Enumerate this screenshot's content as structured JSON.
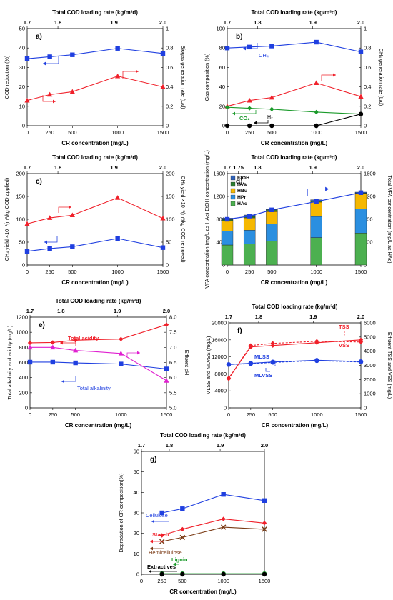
{
  "colors": {
    "blue": "#1f3fe0",
    "red": "#f0202a",
    "green": "#1a9a2a",
    "black": "#000000",
    "brown": "#7a3a14",
    "magenta": "#e020d0",
    "EtOH": "#2f62b8",
    "HVa": "#2e7d32",
    "HBu": "#f5b800",
    "HPr": "#2b8fe0",
    "HAc": "#4cb050"
  },
  "chart_data": [
    {
      "id": "a",
      "type": "line",
      "panel_label": "a)",
      "x2label": "Total COD loading rate (kg/m³d)",
      "x2_ticks": [
        "1.7",
        "1.8",
        "1.9",
        "2.0"
      ],
      "xlabel": "CR concentration (mg/L)",
      "x_ticks": [
        "0",
        "250",
        "500",
        "1000",
        "1500"
      ],
      "ylabel": "COD reduction (%)",
      "ylim": [
        0,
        50
      ],
      "y_ticks": [
        "0",
        "10",
        "20",
        "30",
        "40",
        "50"
      ],
      "y2label": "Biogas generation rate (L/d)",
      "y2lim": [
        0,
        1
      ],
      "y2_ticks": [
        "0",
        "0.2",
        "0.4",
        "0.6",
        "0.8",
        "1"
      ],
      "series": [
        {
          "axis": "left",
          "color": "blue",
          "marker": "square",
          "x": [
            0,
            250,
            500,
            1000,
            1500
          ],
          "y": [
            34.5,
            35.5,
            36.5,
            39.8,
            37.2
          ]
        },
        {
          "axis": "right",
          "color": "red",
          "marker": "triangle",
          "x": [
            0,
            250,
            500,
            1000,
            1500
          ],
          "y": [
            0.26,
            0.32,
            0.35,
            0.51,
            0.4
          ]
        }
      ]
    },
    {
      "id": "b",
      "type": "line",
      "panel_label": "b)",
      "x2label": "Total COD loading rate (kg/m³d)",
      "x2_ticks": [
        "1.7",
        "1.8",
        "1.9",
        "2.0"
      ],
      "xlabel": "CR concentration (mg/L)",
      "x_ticks": [
        "0",
        "250",
        "500",
        "1000",
        "1500"
      ],
      "ylabel": "Gas composition (%)",
      "ylim": [
        0,
        100
      ],
      "y_ticks": [
        "0",
        "20",
        "40",
        "60",
        "80",
        "100"
      ],
      "y2label": "CH₄ generation rate (L/d)",
      "y2lim": [
        0,
        1
      ],
      "y2_ticks": [
        "0",
        "0.2",
        "0.4",
        "0.6",
        "0.8",
        "1"
      ],
      "annotations": [
        "CH₄",
        "CO₂",
        "H₂"
      ],
      "series": [
        {
          "axis": "left",
          "color": "blue",
          "marker": "square",
          "x": [
            0,
            250,
            500,
            1000,
            1500
          ],
          "y": [
            80,
            81,
            82,
            86,
            76
          ]
        },
        {
          "axis": "right",
          "color": "red",
          "marker": "triangle",
          "x": [
            0,
            250,
            500,
            1000,
            1500
          ],
          "y": [
            0.2,
            0.26,
            0.29,
            0.44,
            0.3
          ]
        },
        {
          "axis": "left",
          "color": "green",
          "marker": "diamond",
          "x": [
            0,
            250,
            500,
            1000,
            1500
          ],
          "y": [
            19,
            18,
            17,
            14,
            12
          ]
        },
        {
          "axis": "left",
          "color": "black",
          "marker": "circle",
          "x": [
            0,
            250,
            500,
            1000,
            1500
          ],
          "y": [
            0,
            0,
            0,
            0,
            12
          ]
        }
      ]
    },
    {
      "id": "c",
      "type": "line",
      "panel_label": "c)",
      "xlabel": "CR concentration (mg/L)",
      "x_ticks": [
        "0",
        "250",
        "500",
        "1000",
        "1500"
      ],
      "x2label": "Total COD loading rate (kg/m³d)",
      "x2_ticks": [
        "1.7",
        "1.8",
        "1.9",
        "2.0"
      ],
      "ylabel": "CH₄ yield ×10⁻³(m³/kg COD applied)",
      "ylim": [
        0,
        200
      ],
      "y_ticks": [
        "0",
        "50",
        "100",
        "150",
        "200"
      ],
      "y2label": "CH₄ yield ×10⁻³(m³/kg COD removed)",
      "y2lim": [
        0,
        200
      ],
      "y2_ticks": [
        "0",
        "50",
        "100",
        "150",
        "200"
      ],
      "series": [
        {
          "axis": "left",
          "color": "blue",
          "marker": "square",
          "x": [
            0,
            250,
            500,
            1000,
            1500
          ],
          "y": [
            30,
            36,
            40,
            58,
            38
          ]
        },
        {
          "axis": "right",
          "color": "red",
          "marker": "triangle",
          "x": [
            0,
            250,
            500,
            1000,
            1500
          ],
          "y": [
            90,
            103,
            109,
            147,
            102
          ]
        }
      ]
    },
    {
      "id": "d",
      "type": "bar",
      "panel_label": "d)",
      "x2label": "Total COD loading rate (kg/m³d)",
      "x2_ticks": [
        "1.7",
        "1.75",
        "1.8",
        "1.9",
        "2.0"
      ],
      "xlabel": "CR concentration (mg/L)",
      "categories": [
        "0",
        "250",
        "500",
        "1000",
        "1500"
      ],
      "ylabel": "VFA concentration (mg/L as HAc) EtOH concentration (mg/L)",
      "ylim": [
        0,
        1600
      ],
      "y_ticks": [
        "0",
        "400",
        "800",
        "1200",
        "1600"
      ],
      "y2label": "Total VFA concentration (mg/L as HAc)",
      "y2lim": [
        0,
        1600
      ],
      "y2_ticks": [
        "0",
        "400",
        "800",
        "1200",
        "1600"
      ],
      "legend": [
        "EtOH",
        "HVa",
        "HBu",
        "HPr",
        "HAc"
      ],
      "stacks": {
        "HAc": [
          350,
          370,
          420,
          480,
          560
        ],
        "HPr": [
          240,
          240,
          300,
          370,
          420
        ],
        "HBu": [
          185,
          215,
          215,
          250,
          270
        ],
        "HVa": [
          20,
          25,
          30,
          20,
          10
        ],
        "EtOH": [
          25,
          25,
          20,
          20,
          15
        ]
      },
      "total_vfa": [
        800,
        855,
        965,
        1110,
        1265
      ]
    },
    {
      "id": "e",
      "type": "line",
      "panel_label": "e)",
      "x2label": "Total COD loading rate (kg/m³d)",
      "x2_ticks": [
        "1.7",
        "1.8",
        "1.9",
        "2.0"
      ],
      "xlabel": "CR concentration (mg/L)",
      "x_ticks": [
        "0",
        "250",
        "500",
        "1000",
        "1500"
      ],
      "ylabel": "Total alkalinity and acidity (mg/L)",
      "ylim": [
        0,
        1200
      ],
      "y_ticks": [
        "0",
        "200",
        "400",
        "600",
        "800",
        "1000",
        "1200"
      ],
      "y2label": "Effluent pH",
      "y2lim": [
        5,
        8
      ],
      "y2_ticks": [
        "5.0",
        "5.5",
        "6.0",
        "6.5",
        "7.0",
        "7.5",
        "8.0"
      ],
      "annotations": [
        "Total acidity",
        "Total alkalinity"
      ],
      "series": [
        {
          "axis": "left",
          "color": "red",
          "marker": "diamond",
          "x": [
            0,
            250,
            500,
            1000,
            1500
          ],
          "y": [
            860,
            865,
            895,
            910,
            1100
          ]
        },
        {
          "axis": "left",
          "color": "blue",
          "marker": "square",
          "x": [
            0,
            250,
            500,
            1000,
            1500
          ],
          "y": [
            605,
            605,
            595,
            580,
            515
          ]
        },
        {
          "axis": "right",
          "color": "magenta",
          "marker": "triangle",
          "x": [
            0,
            250,
            500,
            1000,
            1500
          ],
          "y": [
            7.0,
            7.0,
            6.9,
            6.8,
            5.9
          ]
        }
      ]
    },
    {
      "id": "f",
      "type": "line",
      "panel_label": "f)",
      "x2label": "Total COD loading rate (kg/m³d)",
      "x2_ticks": [
        "1.7",
        "1.8",
        "1.9",
        "2.0"
      ],
      "xlabel": "CR concentration (mg/L)",
      "x_ticks": [
        "0",
        "250",
        "500",
        "1000",
        "1500"
      ],
      "ylabel": "MLSS and MLVSS (mg/L)",
      "ylim": [
        0,
        20000
      ],
      "y_ticks": [
        "0",
        "4000",
        "8000",
        "12000",
        "16000",
        "20000"
      ],
      "y2label": "Effluent TSS and VSS (mg/L)",
      "y2lim": [
        0,
        6000
      ],
      "y2_ticks": [
        "0",
        "1000",
        "2000",
        "3000",
        "4000",
        "5000",
        "6000"
      ],
      "annotations": [
        "MLSS",
        "MLVSS",
        "TSS",
        "VSS"
      ],
      "series": [
        {
          "axis": "left",
          "color": "blue",
          "marker": "circle",
          "x": [
            0,
            250,
            500,
            1000,
            1500
          ],
          "y": [
            10200,
            10500,
            10800,
            11200,
            10900
          ]
        },
        {
          "axis": "left",
          "color": "blue",
          "marker": "circle",
          "dashed": true,
          "x": [
            0,
            250,
            500,
            1000,
            1500
          ],
          "y": [
            10200,
            10400,
            10700,
            11100,
            10800
          ]
        },
        {
          "axis": "right",
          "color": "red",
          "marker": "diamond",
          "x": [
            0,
            250,
            500,
            1000,
            1500
          ],
          "y": [
            2100,
            4300,
            4400,
            4600,
            4800
          ]
        },
        {
          "axis": "right",
          "color": "red",
          "marker": "diamond",
          "dashed": true,
          "x": [
            0,
            250,
            500,
            1000,
            1500
          ],
          "y": [
            2050,
            4400,
            4550,
            4700,
            4650
          ]
        }
      ]
    },
    {
      "id": "g",
      "type": "line",
      "panel_label": "g)",
      "x2label": "Total COD loading rate (kg/m³d)",
      "x2_ticks": [
        "1.7",
        "1.8",
        "1.9",
        "2.0"
      ],
      "xlabel": "CR concentration (mg/L)",
      "x_ticks": [
        "0",
        "250",
        "500",
        "1000",
        "1500"
      ],
      "ylabel": "Degradation of CR composition(%)",
      "ylim": [
        0,
        60
      ],
      "y_ticks": [
        "0",
        "10",
        "20",
        "30",
        "40",
        "50",
        "60"
      ],
      "annotations": [
        "Cellulose",
        "Starch",
        "Hemicellulose",
        "Lignin",
        "Extractives"
      ],
      "series": [
        {
          "name": "Cellulose",
          "color": "blue",
          "marker": "square",
          "x": [
            250,
            500,
            1000,
            1500
          ],
          "y": [
            30,
            32,
            39,
            36
          ]
        },
        {
          "name": "Starch",
          "color": "red",
          "marker": "diamond",
          "x": [
            250,
            500,
            1000,
            1500
          ],
          "y": [
            19,
            22,
            27,
            25
          ]
        },
        {
          "name": "Hemicellulose",
          "color": "brown",
          "marker": "x",
          "x": [
            250,
            500,
            1000,
            1500
          ],
          "y": [
            16,
            18,
            23,
            22
          ]
        },
        {
          "name": "Lignin",
          "color": "green",
          "marker": "circle",
          "x": [
            250,
            500,
            1000,
            1500
          ],
          "y": [
            0.3,
            0.3,
            0.3,
            0.3
          ]
        },
        {
          "name": "Extractives",
          "color": "black",
          "marker": "circle",
          "x": [
            250,
            500,
            1000,
            1500
          ],
          "y": [
            0,
            0,
            0,
            0
          ]
        }
      ]
    }
  ]
}
